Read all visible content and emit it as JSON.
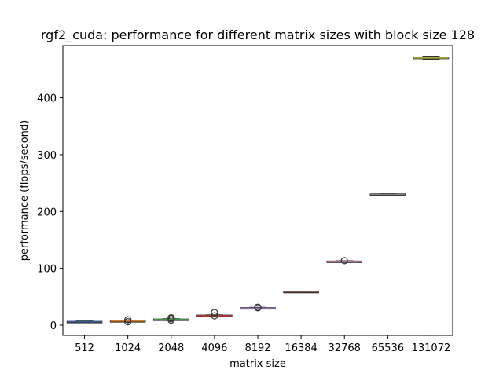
{
  "chart_data": {
    "type": "box",
    "title": "rgf2_cuda: performance for different matrix sizes with block size 128",
    "xlabel": "matrix size",
    "ylabel": "performance (flops/second)",
    "categories": [
      "512",
      "1024",
      "2048",
      "4096",
      "8192",
      "16384",
      "32768",
      "65536",
      "131072"
    ],
    "ylim": [
      -18,
      492
    ],
    "yticks": [
      0,
      100,
      200,
      300,
      400
    ],
    "grid": false,
    "legend": "none",
    "box_fill": "#ffffff",
    "box_edge": "#333333",
    "median_colors": [
      "#3a5f96",
      "#d57a2a",
      "#3e9443",
      "#c03a35",
      "#8a6aa8",
      "#8a5a4a",
      "#d486bf",
      "#7f7f7f",
      "#b5b53a"
    ],
    "boxes": [
      {
        "category": "512",
        "q1": 5.6,
        "median": 6.0,
        "q3": 6.4,
        "whisker_low": 5.0,
        "whisker_high": 7.0,
        "outliers": []
      },
      {
        "category": "1024",
        "q1": 6.8,
        "median": 7.3,
        "q3": 7.7,
        "whisker_low": 6.3,
        "whisker_high": 8.2,
        "outliers": [
          6.0,
          9.5
        ]
      },
      {
        "category": "2048",
        "q1": 9.5,
        "median": 10.0,
        "q3": 10.5,
        "whisker_low": 9.0,
        "whisker_high": 11.0,
        "outliers": [
          9.0,
          11.5,
          13.0
        ]
      },
      {
        "category": "4096",
        "q1": 16.2,
        "median": 16.8,
        "q3": 17.5,
        "whisker_low": 15.5,
        "whisker_high": 18.0,
        "outliers": [
          16.5,
          22.0
        ]
      },
      {
        "category": "8192",
        "q1": 29.5,
        "median": 30.0,
        "q3": 30.6,
        "whisker_low": 29.0,
        "whisker_high": 31.0,
        "outliers": [
          30.5,
          31.5
        ]
      },
      {
        "category": "16384",
        "q1": 58.7,
        "median": 59.0,
        "q3": 59.3,
        "whisker_low": 58.5,
        "whisker_high": 59.5,
        "outliers": []
      },
      {
        "category": "32768",
        "q1": 111.5,
        "median": 112.0,
        "q3": 112.5,
        "whisker_low": 111.0,
        "whisker_high": 113.0,
        "outliers": [
          113.5
        ]
      },
      {
        "category": "65536",
        "q1": 229.8,
        "median": 230.3,
        "q3": 230.9,
        "whisker_low": 229.5,
        "whisker_high": 231.2,
        "outliers": []
      },
      {
        "category": "131072",
        "q1": 469.0,
        "median": 470.0,
        "q3": 471.5,
        "whisker_low": 468.0,
        "whisker_high": 473.0,
        "outliers": []
      }
    ]
  }
}
